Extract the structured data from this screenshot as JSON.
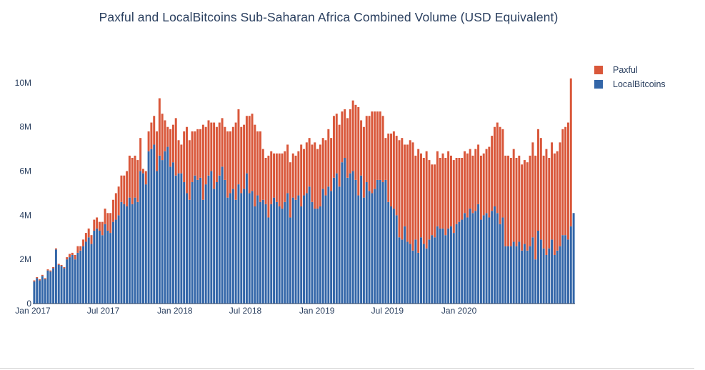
{
  "chart_data": {
    "type": "bar",
    "stacked": true,
    "title": "Paxful and LocalBitcoins Sub-Saharan Africa Combined Volume  (USD Equivalent)",
    "xlabel": "",
    "ylabel": "",
    "x_start": "2017-01-01",
    "x_interval": "weekly",
    "ylim": [
      0,
      11000000
    ],
    "y_ticks": [
      {
        "value": 0,
        "label": "0"
      },
      {
        "value": 2000000,
        "label": "2M"
      },
      {
        "value": 4000000,
        "label": "4M"
      },
      {
        "value": 6000000,
        "label": "6M"
      },
      {
        "value": 8000000,
        "label": "8M"
      },
      {
        "value": 10000000,
        "label": "10M"
      }
    ],
    "x_ticks": [
      {
        "date": "2017-01-01",
        "label": "Jan 2017"
      },
      {
        "date": "2017-07-01",
        "label": "Jul 2017"
      },
      {
        "date": "2018-01-01",
        "label": "Jan 2018"
      },
      {
        "date": "2018-07-01",
        "label": "Jul 2018"
      },
      {
        "date": "2019-01-01",
        "label": "Jan 2019"
      },
      {
        "date": "2019-07-01",
        "label": "Jul 2019"
      },
      {
        "date": "2020-01-01",
        "label": "Jan 2020"
      }
    ],
    "legend_position": "top-right",
    "grid": false,
    "series": [
      {
        "name": "LocalBitcoins",
        "color": "#3366a8",
        "values": [
          1.0,
          1.15,
          1.05,
          1.25,
          1.1,
          1.5,
          1.45,
          1.6,
          2.45,
          1.75,
          1.7,
          1.6,
          2.0,
          2.1,
          2.2,
          2.0,
          2.3,
          2.4,
          2.6,
          2.8,
          3.0,
          2.7,
          3.3,
          3.4,
          3.3,
          3.1,
          3.6,
          3.3,
          3.2,
          3.7,
          3.8,
          4.0,
          4.6,
          4.5,
          4.4,
          4.8,
          4.5,
          4.8,
          4.6,
          6.0,
          5.9,
          5.4,
          6.9,
          7.0,
          7.2,
          6.0,
          6.7,
          6.5,
          6.9,
          7.1,
          6.2,
          6.4,
          5.8,
          5.9,
          5.9,
          5.5,
          5.0,
          4.7,
          5.5,
          5.8,
          5.6,
          5.7,
          4.7,
          5.4,
          5.8,
          6.0,
          5.2,
          5.5,
          5.8,
          6.2,
          5.6,
          4.8,
          5.0,
          5.2,
          4.7,
          5.4,
          5.0,
          5.2,
          5.9,
          5.0,
          5.1,
          4.4,
          4.9,
          4.6,
          4.7,
          4.5,
          3.9,
          4.5,
          4.8,
          4.6,
          4.4,
          4.3,
          4.6,
          5.0,
          3.9,
          4.8,
          4.7,
          4.9,
          4.4,
          4.9,
          5.0,
          5.3,
          4.6,
          4.3,
          4.3,
          4.4,
          5.2,
          4.9,
          5.3,
          5.1,
          5.7,
          5.9,
          5.3,
          6.4,
          6.6,
          5.7,
          5.9,
          6.0,
          5.6,
          4.9,
          5.8,
          4.8,
          5.5,
          5.1,
          5.0,
          5.2,
          5.6,
          5.6,
          5.5,
          5.6,
          4.6,
          4.4,
          4.3,
          4.0,
          3.0,
          2.9,
          3.5,
          2.8,
          2.7,
          2.4,
          2.9,
          2.3,
          3.0,
          2.7,
          2.5,
          2.9,
          3.1,
          3.0,
          3.5,
          3.4,
          3.4,
          3.1,
          3.4,
          3.5,
          3.2,
          3.6,
          3.7,
          3.8,
          4.1,
          3.9,
          4.3,
          4.1,
          4.2,
          4.5,
          3.8,
          4.0,
          4.1,
          3.9,
          4.2,
          4.4,
          4.1,
          3.6,
          3.9,
          2.6,
          2.6,
          2.6,
          2.8,
          2.6,
          2.8,
          2.4,
          2.7,
          2.4,
          2.6,
          3.0,
          2.0,
          3.3,
          2.9,
          2.5,
          2.2,
          2.5,
          2.9,
          2.2,
          2.4,
          2.6,
          3.1,
          3.1,
          2.9,
          3.5,
          4.1
        ]
      },
      {
        "name": "Paxful",
        "color": "#d9573a",
        "values": [
          0.05,
          0.05,
          0.05,
          0.05,
          0.05,
          0.05,
          0.05,
          0.05,
          0.05,
          0.05,
          0.05,
          0.05,
          0.1,
          0.15,
          0.1,
          0.2,
          0.3,
          0.2,
          0.3,
          0.4,
          0.4,
          0.4,
          0.5,
          0.5,
          0.4,
          0.6,
          0.7,
          0.8,
          0.9,
          1.0,
          1.2,
          1.3,
          1.2,
          1.3,
          1.6,
          1.9,
          2.1,
          1.9,
          1.9,
          1.5,
          0.2,
          0.6,
          0.9,
          1.2,
          1.3,
          1.8,
          2.6,
          2.1,
          1.4,
          0.9,
          1.7,
          1.7,
          2.6,
          1.5,
          1.3,
          2.3,
          3.0,
          2.7,
          2.3,
          2.0,
          2.3,
          2.2,
          3.4,
          2.6,
          2.5,
          2.2,
          3.0,
          2.5,
          2.4,
          2.2,
          2.4,
          3.0,
          2.8,
          2.8,
          3.5,
          3.4,
          3.0,
          2.9,
          2.6,
          3.5,
          3.5,
          3.7,
          2.9,
          3.2,
          2.3,
          2.1,
          2.8,
          2.4,
          2.0,
          2.2,
          2.4,
          2.5,
          2.3,
          2.2,
          2.5,
          2.0,
          2.0,
          2.0,
          2.8,
          2.1,
          2.3,
          2.2,
          2.6,
          3.0,
          2.7,
          2.8,
          2.3,
          2.5,
          2.6,
          2.4,
          2.8,
          2.7,
          2.8,
          2.3,
          2.2,
          2.7,
          2.9,
          3.2,
          3.4,
          4.0,
          2.5,
          3.2,
          3.0,
          3.4,
          3.7,
          3.5,
          3.1,
          3.1,
          3.0,
          1.9,
          3.1,
          3.3,
          3.5,
          3.6,
          4.4,
          4.6,
          3.7,
          4.4,
          4.7,
          4.9,
          3.8,
          4.7,
          3.8,
          3.9,
          4.4,
          3.6,
          3.2,
          3.3,
          3.4,
          3.2,
          3.4,
          3.5,
          3.5,
          3.2,
          3.3,
          3.0,
          2.9,
          2.8,
          2.8,
          2.9,
          2.7,
          2.6,
          2.8,
          2.7,
          2.9,
          2.8,
          2.9,
          3.2,
          3.4,
          3.6,
          4.1,
          4.4,
          4.0,
          4.1,
          4.1,
          4.0,
          4.2,
          4.0,
          3.9,
          3.9,
          3.8,
          4.0,
          4.1,
          4.3,
          4.7,
          4.6,
          4.6,
          4.2,
          4.8,
          4.1,
          4.4,
          4.6,
          4.5,
          4.7,
          4.8,
          4.9,
          5.3,
          6.7
        ]
      }
    ]
  }
}
